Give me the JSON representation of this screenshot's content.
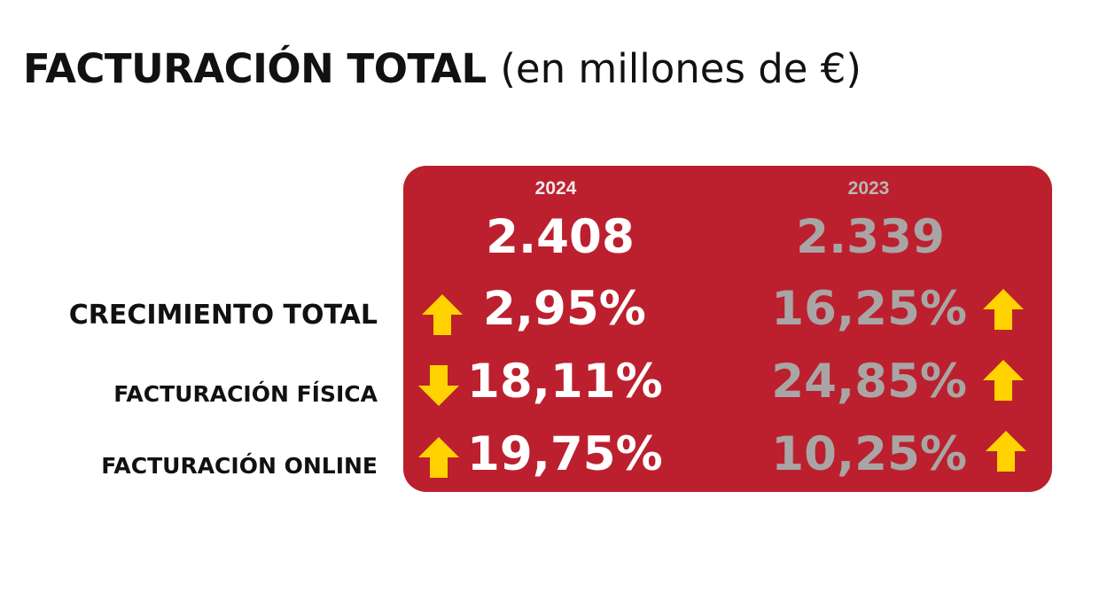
{
  "header": {
    "title_main": "FACTURACIÓN TOTAL",
    "title_unit": "(en millones de €)"
  },
  "labels": {
    "crecimiento_total": "CRECIMIENTO TOTAL",
    "facturacion_fisica": "FACTURACIÓN FÍSICA",
    "facturacion_online": "FACTURACIÓN ONLINE"
  },
  "years": {
    "current": "2024",
    "previous": "2023"
  },
  "totals": {
    "current": "2.408",
    "previous": "2.339"
  },
  "growth": {
    "current": {
      "total": "2,95%",
      "fisica": "18,11%",
      "online": "19,75%"
    },
    "previous": {
      "total": "16,25%",
      "fisica": "24,85%",
      "online": "10,25%"
    }
  },
  "trend": {
    "current": {
      "total": "up",
      "fisica": "down",
      "online": "up"
    },
    "previous": {
      "total": "up",
      "fisica": "up",
      "online": "up"
    }
  },
  "icons": {
    "up": "arrow-up-icon",
    "down": "arrow-down-icon"
  },
  "colors": {
    "panel": "#bc202e",
    "arrow": "#ffd200",
    "current_text": "#ffffff",
    "previous_text": "#a9a5a5"
  }
}
